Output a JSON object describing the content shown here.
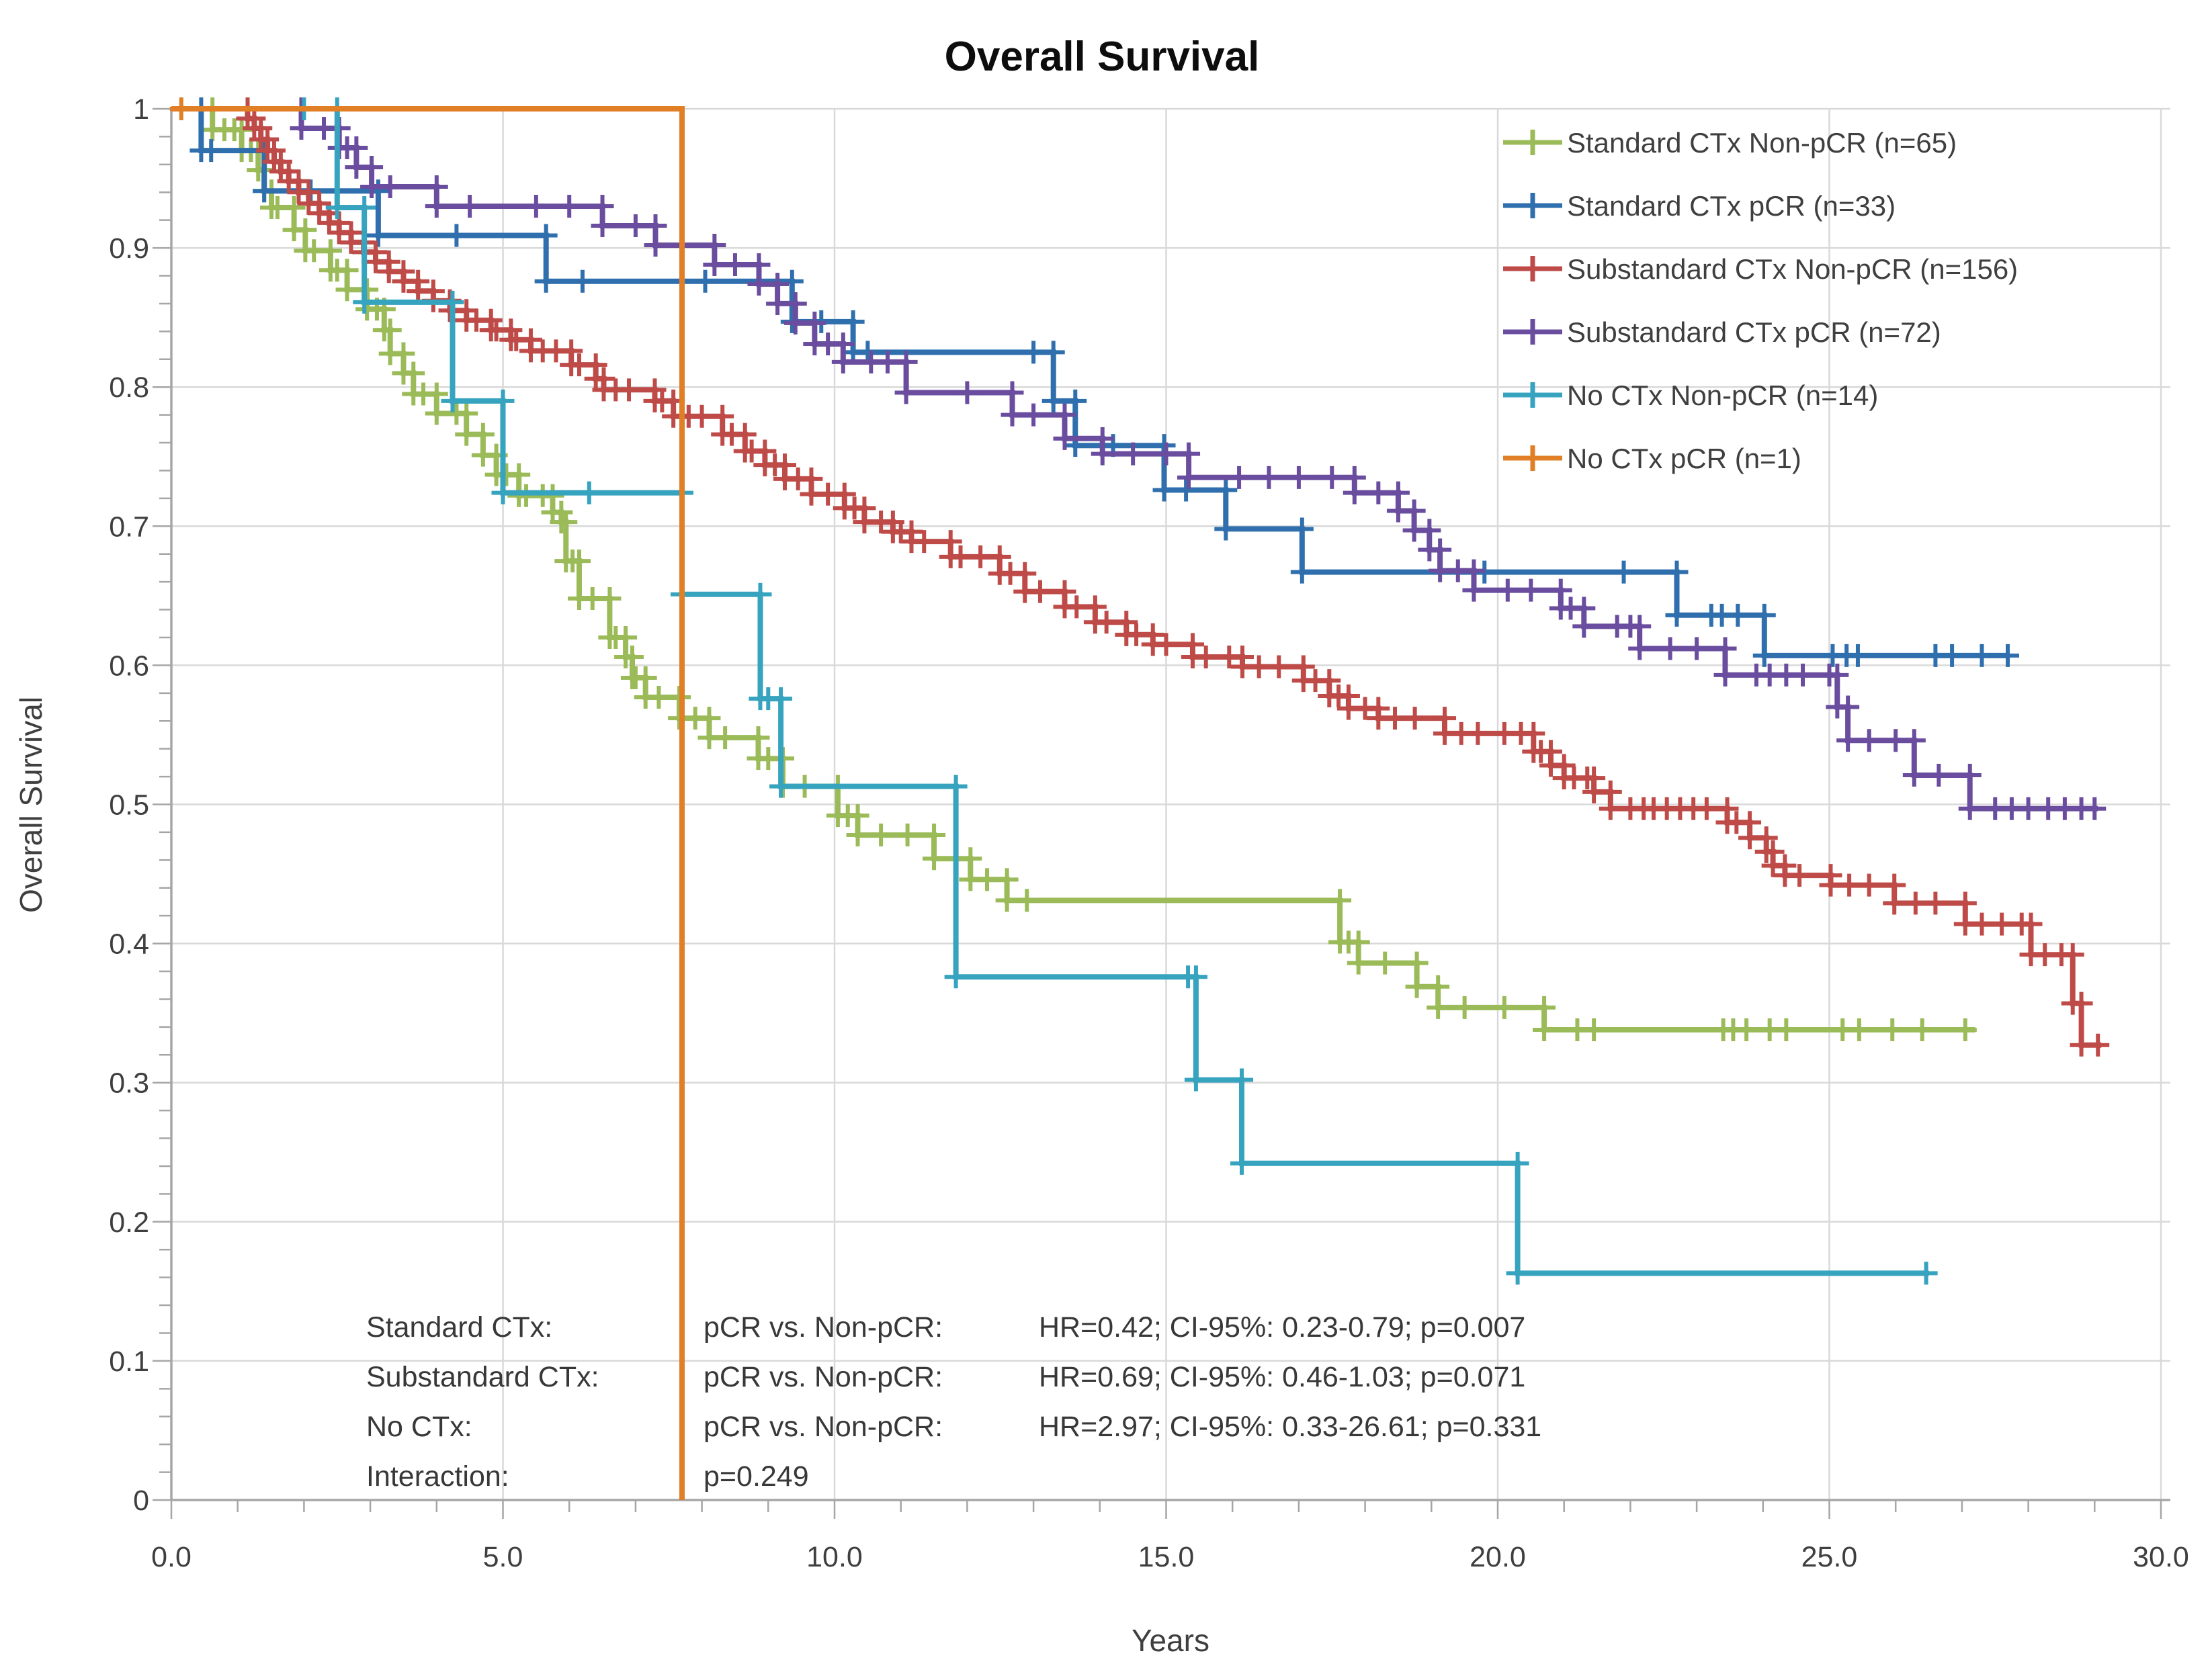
{
  "title": "Overall Survival",
  "colors": {
    "grid": "#D9D9D9",
    "axis": "#A6A6A6",
    "text": "#3f3f3f",
    "title_text": "#0d0d0d",
    "green": "#9BBB59",
    "blue": "#2F6FAE",
    "red": "#BE4B48",
    "purple": "#6A4D9E",
    "teal": "#36A3BF",
    "orange": "#E07F26"
  },
  "x_axis": {
    "label": "Years",
    "min": 0,
    "max": 30,
    "major_ticks": [
      0,
      5,
      10,
      15,
      20,
      25,
      30
    ],
    "tick_labels": [
      "0.0",
      "5.0",
      "10.0",
      "15.0",
      "20.0",
      "25.0",
      "30.0"
    ],
    "minor_step": 1
  },
  "y_axis": {
    "label": "Overall Survival",
    "min": 0,
    "max": 1,
    "tick_labels": [
      "0",
      "0.1",
      "0.2",
      "0.3",
      "0.4",
      "0.5",
      "0.6",
      "0.7",
      "0.8",
      "0.9",
      "1"
    ],
    "major_step": 0.1,
    "minor_step": 0.02
  },
  "legend": {
    "items": [
      {
        "label": "Standard CTx Non-pCR (n=65)",
        "color": "#9BBB59"
      },
      {
        "label": "Standard CTx pCR (n=33)",
        "color": "#2F6FAE"
      },
      {
        "label": "Substandard CTx Non-pCR (n=156)",
        "color": "#BE4B48"
      },
      {
        "label": "Substandard CTx pCR (n=72)",
        "color": "#6A4D9E"
      },
      {
        "label": "No CTx Non-pCR (n=14)",
        "color": "#36A3BF"
      },
      {
        "label": "No CTx pCR (n=1)",
        "color": "#E07F26"
      }
    ]
  },
  "annotation": {
    "rows": [
      {
        "label": "Standard CTx:",
        "comparison": "pCR vs. Non-pCR:",
        "stats": "HR=0.42; CI-95%: 0.23-0.79; p=0.007"
      },
      {
        "label": "Substandard CTx:",
        "comparison": "pCR vs. Non-pCR:",
        "stats": "HR=0.69; CI-95%: 0.46-1.03; p=0.071"
      },
      {
        "label": "No CTx:",
        "comparison": "pCR vs. Non-pCR:",
        "stats": "HR=2.97; CI-95%: 0.33-26.61; p=0.331"
      },
      {
        "label": "Interaction:",
        "comparison": "p=0.249",
        "stats": ""
      }
    ]
  },
  "chart_data": {
    "type": "line",
    "subtype": "kaplan-meier-step",
    "title": "Overall Survival",
    "xlabel": "Years",
    "ylabel": "Overall Survival",
    "xlim": [
      0,
      30
    ],
    "ylim": [
      0,
      1
    ],
    "grid": true,
    "legend_position": "top-right",
    "series": [
      {
        "id": "standard-ctx-non-pcr",
        "name": "Standard CTx Non-pCR (n=65)",
        "n": 65,
        "color": "#9BBB59",
        "corner_markers": true,
        "end_time": 27.2,
        "steps": [
          [
            0,
            1
          ],
          [
            0.62,
            0.985
          ],
          [
            1.06,
            0.97
          ],
          [
            1.31,
            0.956
          ],
          [
            1.4,
            0.941
          ],
          [
            1.51,
            0.929
          ],
          [
            1.85,
            0.913
          ],
          [
            2.02,
            0.898
          ],
          [
            2.4,
            0.884
          ],
          [
            2.65,
            0.87
          ],
          [
            2.95,
            0.856
          ],
          [
            3.21,
            0.841
          ],
          [
            3.3,
            0.824
          ],
          [
            3.5,
            0.81
          ],
          [
            3.65,
            0.795
          ],
          [
            4.0,
            0.781
          ],
          [
            4.45,
            0.766
          ],
          [
            4.7,
            0.751
          ],
          [
            4.9,
            0.737
          ],
          [
            5.24,
            0.722
          ],
          [
            5.75,
            0.71
          ],
          [
            5.88,
            0.703
          ],
          [
            5.95,
            0.675
          ],
          [
            6.15,
            0.648
          ],
          [
            6.61,
            0.62
          ],
          [
            6.85,
            0.606
          ],
          [
            6.95,
            0.591
          ],
          [
            7.15,
            0.577
          ],
          [
            7.66,
            0.562
          ],
          [
            8.11,
            0.548
          ],
          [
            8.85,
            0.533
          ],
          [
            9.22,
            0.513
          ],
          [
            10.05,
            0.492
          ],
          [
            10.35,
            0.478
          ],
          [
            11.5,
            0.461
          ],
          [
            12.05,
            0.446
          ],
          [
            12.6,
            0.431
          ],
          [
            17.62,
            0.401
          ],
          [
            17.9,
            0.386
          ],
          [
            18.78,
            0.369
          ],
          [
            19.1,
            0.354
          ],
          [
            20.7,
            0.338
          ]
        ],
        "censors": [
          0.8,
          0.95,
          1.2,
          1.6,
          2.15,
          2.5,
          3.1,
          3.8,
          4.3,
          5.05,
          5.35,
          5.6,
          6.05,
          6.35,
          6.7,
          7.0,
          7.35,
          7.9,
          8.35,
          9.0,
          9.55,
          10.2,
          10.7,
          11.1,
          12.3,
          12.9,
          17.75,
          18.3,
          19.5,
          20.1,
          21.2,
          21.45,
          23.4,
          23.55,
          23.75,
          24.1,
          24.35,
          25.2,
          25.45,
          25.95,
          26.4,
          27.05
        ]
      },
      {
        "id": "standard-ctx-pcr",
        "name": "Standard CTx pCR (n=33)",
        "n": 33,
        "color": "#2F6FAE",
        "corner_markers": true,
        "end_time": 27.71,
        "steps": [
          [
            0,
            1
          ],
          [
            0.45,
            0.97
          ],
          [
            1.4,
            0.941
          ],
          [
            3.12,
            0.909
          ],
          [
            5.65,
            0.876
          ],
          [
            9.36,
            0.847
          ],
          [
            10.28,
            0.825
          ],
          [
            13.3,
            0.79
          ],
          [
            13.63,
            0.758
          ],
          [
            14.97,
            0.726
          ],
          [
            15.9,
            0.698
          ],
          [
            17.05,
            0.667
          ],
          [
            22.7,
            0.636
          ],
          [
            24.02,
            0.607
          ]
        ],
        "censors": [
          0.6,
          2.1,
          4.3,
          6.2,
          8.05,
          9.8,
          10.5,
          13.0,
          14.2,
          15.3,
          19.8,
          21.9,
          23.22,
          23.38,
          23.62,
          25.05,
          25.26,
          25.43,
          26.6,
          26.85,
          27.3,
          27.69
        ]
      },
      {
        "id": "substandard-ctx-non-pcr",
        "name": "Substandard CTx Non-pCR (n=156)",
        "n": 156,
        "color": "#BE4B48",
        "corner_markers": true,
        "end_time": 29.1,
        "steps": [
          [
            0,
            1
          ],
          [
            1.15,
            0.993
          ],
          [
            1.25,
            0.986
          ],
          [
            1.35,
            0.978
          ],
          [
            1.45,
            0.97
          ],
          [
            1.55,
            0.962
          ],
          [
            1.65,
            0.955
          ],
          [
            1.77,
            0.948
          ],
          [
            1.92,
            0.94
          ],
          [
            2.07,
            0.932
          ],
          [
            2.23,
            0.925
          ],
          [
            2.38,
            0.918
          ],
          [
            2.53,
            0.911
          ],
          [
            2.71,
            0.904
          ],
          [
            2.9,
            0.897
          ],
          [
            3.08,
            0.89
          ],
          [
            3.28,
            0.883
          ],
          [
            3.5,
            0.876
          ],
          [
            3.72,
            0.869
          ],
          [
            3.95,
            0.862
          ],
          [
            4.2,
            0.855
          ],
          [
            4.45,
            0.848
          ],
          [
            4.82,
            0.841
          ],
          [
            5.12,
            0.834
          ],
          [
            5.42,
            0.826
          ],
          [
            6.03,
            0.816
          ],
          [
            6.4,
            0.806
          ],
          [
            6.52,
            0.798
          ],
          [
            7.29,
            0.79
          ],
          [
            7.57,
            0.779
          ],
          [
            8.31,
            0.766
          ],
          [
            8.65,
            0.754
          ],
          [
            8.95,
            0.744
          ],
          [
            9.25,
            0.734
          ],
          [
            9.65,
            0.723
          ],
          [
            10.15,
            0.713
          ],
          [
            10.45,
            0.703
          ],
          [
            10.88,
            0.696
          ],
          [
            11.16,
            0.689
          ],
          [
            11.75,
            0.678
          ],
          [
            12.49,
            0.666
          ],
          [
            12.87,
            0.653
          ],
          [
            13.47,
            0.642
          ],
          [
            13.93,
            0.631
          ],
          [
            14.4,
            0.622
          ],
          [
            14.8,
            0.615
          ],
          [
            15.4,
            0.606
          ],
          [
            16.15,
            0.599
          ],
          [
            17.07,
            0.589
          ],
          [
            17.46,
            0.578
          ],
          [
            17.75,
            0.569
          ],
          [
            18.2,
            0.562
          ],
          [
            19.2,
            0.551
          ],
          [
            20.54,
            0.538
          ],
          [
            20.8,
            0.528
          ],
          [
            21.0,
            0.519
          ],
          [
            21.45,
            0.509
          ],
          [
            21.7,
            0.497
          ],
          [
            23.46,
            0.487
          ],
          [
            23.8,
            0.476
          ],
          [
            24.05,
            0.466
          ],
          [
            24.15,
            0.456
          ],
          [
            24.33,
            0.449
          ],
          [
            25.02,
            0.442
          ],
          [
            25.98,
            0.429
          ],
          [
            27.05,
            0.414
          ],
          [
            28.04,
            0.392
          ],
          [
            28.67,
            0.357
          ],
          [
            28.8,
            0.327
          ]
        ],
        "censors": [
          4.6,
          4.9,
          5.2,
          5.6,
          5.8,
          6.15,
          6.7,
          6.9,
          7.4,
          7.8,
          8.0,
          8.45,
          8.75,
          9.1,
          9.45,
          9.9,
          10.3,
          10.7,
          11.0,
          11.35,
          11.9,
          12.2,
          12.65,
          13.1,
          13.65,
          14.1,
          14.55,
          15.0,
          15.6,
          15.95,
          16.4,
          16.7,
          17.25,
          17.6,
          18.0,
          18.45,
          18.75,
          19.45,
          19.7,
          20.1,
          20.35,
          20.65,
          21.15,
          21.35,
          22.0,
          22.2,
          22.35,
          22.55,
          22.75,
          22.95,
          23.15,
          23.6,
          24.55,
          25.3,
          25.6,
          26.3,
          26.6,
          27.3,
          27.6,
          27.9,
          28.25,
          28.5,
          29.05
        ]
      },
      {
        "id": "substandard-ctx-pcr",
        "name": "Substandard CTx pCR (n=72)",
        "n": 72,
        "color": "#6A4D9E",
        "corner_markers": true,
        "end_time": 29.05,
        "steps": [
          [
            0,
            1
          ],
          [
            1.96,
            0.986
          ],
          [
            2.53,
            0.972
          ],
          [
            2.79,
            0.958
          ],
          [
            3.02,
            0.944
          ],
          [
            4.0,
            0.93
          ],
          [
            6.5,
            0.916
          ],
          [
            7.3,
            0.902
          ],
          [
            8.19,
            0.888
          ],
          [
            8.86,
            0.874
          ],
          [
            9.14,
            0.86
          ],
          [
            9.41,
            0.846
          ],
          [
            9.7,
            0.831
          ],
          [
            10.13,
            0.818
          ],
          [
            11.08,
            0.796
          ],
          [
            12.68,
            0.78
          ],
          [
            13.47,
            0.763
          ],
          [
            14.04,
            0.752
          ],
          [
            15.34,
            0.735
          ],
          [
            17.84,
            0.724
          ],
          [
            18.5,
            0.711
          ],
          [
            18.74,
            0.697
          ],
          [
            18.97,
            0.683
          ],
          [
            19.13,
            0.668
          ],
          [
            19.64,
            0.654
          ],
          [
            20.95,
            0.641
          ],
          [
            21.3,
            0.628
          ],
          [
            22.14,
            0.612
          ],
          [
            23.43,
            0.593
          ],
          [
            25.12,
            0.57
          ],
          [
            25.28,
            0.546
          ],
          [
            26.28,
            0.521
          ],
          [
            27.12,
            0.497
          ]
        ],
        "censors": [
          2.3,
          2.65,
          3.3,
          4.5,
          5.5,
          6.0,
          7.0,
          8.5,
          9.9,
          10.55,
          10.8,
          12.0,
          13.0,
          14.5,
          15.0,
          16.1,
          16.55,
          17.0,
          17.5,
          18.2,
          19.4,
          20.15,
          20.5,
          21.1,
          21.8,
          22.0,
          22.6,
          23.0,
          23.9,
          24.1,
          24.35,
          24.6,
          25.0,
          25.6,
          26.0,
          26.65,
          27.5,
          27.75,
          28.0,
          28.3,
          28.55,
          28.8,
          29.0
        ]
      },
      {
        "id": "no-ctx-non-pcr",
        "name": "No CTx Non-pCR (n=14)",
        "n": 14,
        "color": "#36A3BF",
        "corner_markers": true,
        "end_time": 26.5,
        "steps": [
          [
            0,
            1
          ],
          [
            2.5,
            0.929
          ],
          [
            2.91,
            0.861
          ],
          [
            4.24,
            0.79
          ],
          [
            5.0,
            0.724
          ],
          [
            7.7,
            0.651
          ],
          [
            8.88,
            0.576
          ],
          [
            9.19,
            0.513
          ],
          [
            11.83,
            0.376
          ],
          [
            15.45,
            0.302
          ],
          [
            16.14,
            0.242
          ],
          [
            20.3,
            0.163
          ]
        ],
        "censors": [
          2.0,
          6.3,
          9.0,
          15.33,
          26.46
        ]
      },
      {
        "id": "no-ctx-pcr",
        "name": "No CTx pCR (n=1)",
        "n": 1,
        "color": "#E07F26",
        "corner_markers": false,
        "end_time": 7.7,
        "drops_to_zero": true,
        "steps": [
          [
            0,
            1
          ],
          [
            7.7,
            0
          ]
        ],
        "censors": [
          0.15
        ]
      }
    ]
  }
}
